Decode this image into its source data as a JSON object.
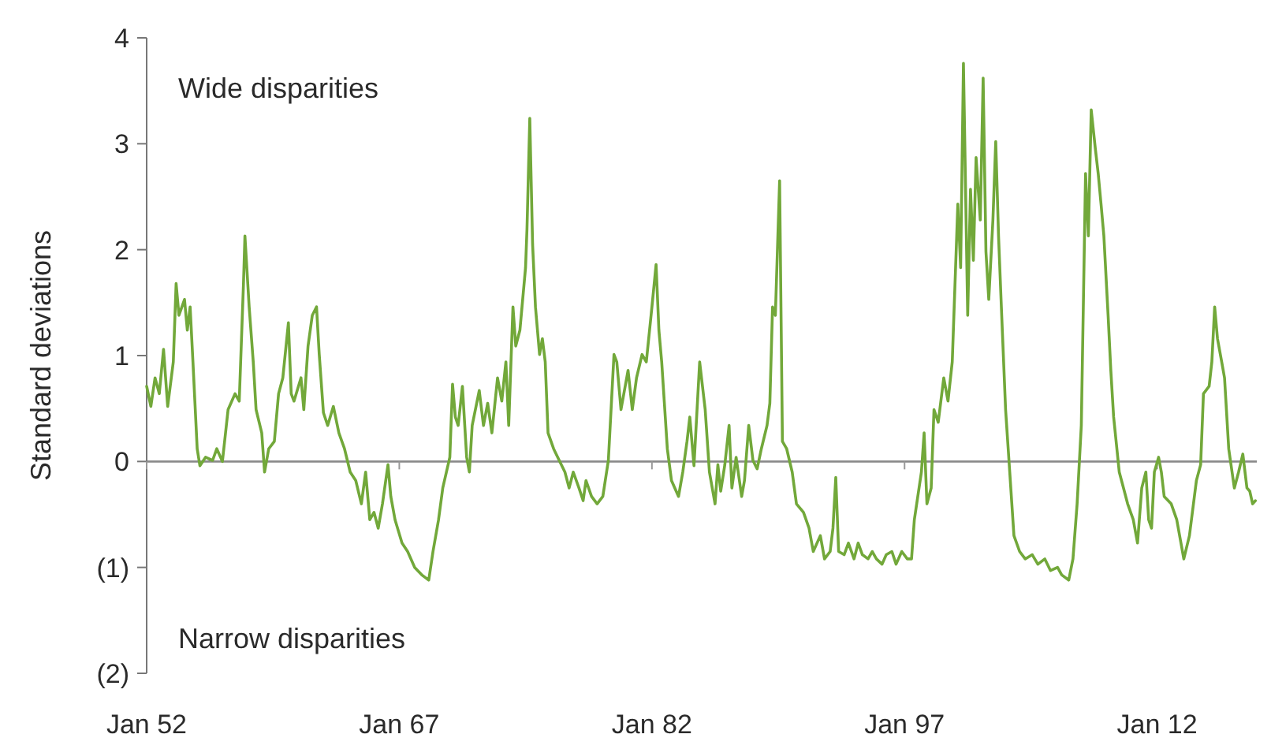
{
  "chart_data": {
    "type": "line",
    "ylabel": "Standard deviations",
    "annotations": [
      "Wide disparities",
      "Narrow disparities"
    ],
    "xlim": [
      "1952-01",
      "2017-12"
    ],
    "xticks": [
      {
        "value": "1952-01",
        "label": "Jan 52"
      },
      {
        "value": "1967-01",
        "label": "Jan 67"
      },
      {
        "value": "1982-01",
        "label": "Jan 82"
      },
      {
        "value": "1997-01",
        "label": "Jan 97"
      },
      {
        "value": "2012-01",
        "label": "Jan 12"
      }
    ],
    "ylim": [
      -2,
      4
    ],
    "yticks": [
      {
        "value": -2,
        "label": "(2)"
      },
      {
        "value": -1,
        "label": "(1)"
      },
      0,
      1,
      2,
      3,
      4
    ],
    "ref_lines": [
      {
        "axis": "y",
        "value": 0,
        "color": "#8c8c8c"
      }
    ],
    "grid": false,
    "marker": "none",
    "line_style": "solid",
    "series": [
      {
        "color": "#72a83a",
        "x": [
          "1952-01",
          "1952-04",
          "1952-07",
          "1952-10",
          "1953-01",
          "1953-04",
          "1953-08",
          "1953-10",
          "1953-12",
          "1954-04",
          "1954-06",
          "1954-08",
          "1954-10",
          "1955-01",
          "1955-03",
          "1955-07",
          "1955-12",
          "1956-03",
          "1956-07",
          "1956-11",
          "1957-04",
          "1957-07",
          "1957-10",
          "1957-11",
          "1958-02",
          "1958-05",
          "1958-07",
          "1958-11",
          "1959-01",
          "1959-04",
          "1959-08",
          "1959-11",
          "1960-02",
          "1960-06",
          "1960-08",
          "1960-10",
          "1961-03",
          "1961-05",
          "1961-08",
          "1961-11",
          "1962-02",
          "1962-04",
          "1962-07",
          "1962-10",
          "1963-02",
          "1963-06",
          "1963-10",
          "1964-02",
          "1964-06",
          "1964-10",
          "1965-01",
          "1965-04",
          "1965-07",
          "1965-10",
          "1966-01",
          "1966-05",
          "1966-07",
          "1966-10",
          "1967-03",
          "1967-07",
          "1967-12",
          "1968-05",
          "1968-10",
          "1969-01",
          "1969-05",
          "1969-08",
          "1970-01",
          "1970-03",
          "1970-05",
          "1970-07",
          "1970-10",
          "1971-01",
          "1971-03",
          "1971-05",
          "1971-10",
          "1972-01",
          "1972-04",
          "1972-07",
          "1972-11",
          "1973-02",
          "1973-05",
          "1973-07",
          "1973-10",
          "1973-12",
          "1974-03",
          "1974-07",
          "1974-08",
          "1974-10",
          "1974-12",
          "1975-02",
          "1975-05",
          "1975-07",
          "1975-09",
          "1975-11",
          "1976-03",
          "1976-07",
          "1976-11",
          "1977-02",
          "1977-05",
          "1977-09",
          "1977-12",
          "1978-02",
          "1978-06",
          "1978-10",
          "1979-02",
          "1979-06",
          "1979-10",
          "1979-12",
          "1980-03",
          "1980-08",
          "1980-11",
          "1981-02",
          "1981-06",
          "1981-09",
          "1982-01",
          "1982-04",
          "1982-06",
          "1982-08",
          "1982-12",
          "1983-03",
          "1983-08",
          "1983-11",
          "1984-02",
          "1984-04",
          "1984-07",
          "1984-11",
          "1985-03",
          "1985-06",
          "1985-10",
          "1985-12",
          "1986-02",
          "1986-05",
          "1986-08",
          "1986-10",
          "1987-01",
          "1987-05",
          "1987-07",
          "1987-10",
          "1988-01",
          "1988-04",
          "1988-07",
          "1988-11",
          "1989-01",
          "1989-03",
          "1989-05",
          "1989-08",
          "1989-10",
          "1990-01",
          "1990-05",
          "1990-08",
          "1991-01",
          "1991-05",
          "1991-08",
          "1992-01",
          "1992-04",
          "1992-08",
          "1992-10",
          "1992-12",
          "1993-02",
          "1993-06",
          "1993-09",
          "1994-01",
          "1994-04",
          "1994-07",
          "1994-11",
          "1995-02",
          "1995-05",
          "1995-09",
          "1995-12",
          "1996-04",
          "1996-07",
          "1996-11",
          "1997-03",
          "1997-06",
          "1997-08",
          "1998-01",
          "1998-03",
          "1998-05",
          "1998-08",
          "1998-10",
          "1999-01",
          "1999-05",
          "1999-08",
          "1999-11",
          "2000-03",
          "2000-05",
          "2000-07",
          "2000-10",
          "2000-12",
          "2001-02",
          "2001-04",
          "2001-07",
          "2001-09",
          "2001-11",
          "2002-01",
          "2002-04",
          "2002-06",
          "2002-08",
          "2002-10",
          "2003-01",
          "2003-04",
          "2003-07",
          "2003-11",
          "2004-03",
          "2004-08",
          "2004-12",
          "2005-05",
          "2005-09",
          "2006-02",
          "2006-05",
          "2006-10",
          "2007-01",
          "2007-04",
          "2007-07",
          "2007-10",
          "2007-12",
          "2008-02",
          "2008-05",
          "2008-07",
          "2008-09",
          "2008-11",
          "2009-02",
          "2009-04",
          "2009-06",
          "2009-10",
          "2010-01",
          "2010-04",
          "2010-08",
          "2010-11",
          "2011-02",
          "2011-05",
          "2011-07",
          "2011-09",
          "2011-11",
          "2012-02",
          "2012-04",
          "2012-06",
          "2012-11",
          "2013-03",
          "2013-08",
          "2013-12",
          "2014-05",
          "2014-08",
          "2014-10",
          "2015-02",
          "2015-04",
          "2015-06",
          "2015-08",
          "2015-11",
          "2016-01",
          "2016-04",
          "2016-08",
          "2016-11",
          "2017-02",
          "2017-05",
          "2017-07",
          "2017-09",
          "2017-11"
        ],
        "values": [
          0.71,
          0.52,
          0.79,
          0.64,
          1.06,
          0.52,
          0.94,
          1.68,
          1.38,
          1.53,
          1.24,
          1.46,
          0.94,
          0.12,
          -0.04,
          0.04,
          0.01,
          0.12,
          0,
          0.49,
          0.64,
          0.57,
          1.68,
          2.13,
          1.46,
          0.94,
          0.49,
          0.27,
          -0.1,
          0.12,
          0.19,
          0.64,
          0.79,
          1.31,
          0.64,
          0.57,
          0.79,
          0.49,
          1.09,
          1.38,
          1.46,
          1.01,
          0.46,
          0.34,
          0.52,
          0.27,
          0.12,
          -0.1,
          -0.18,
          -0.4,
          -0.1,
          -0.55,
          -0.48,
          -0.63,
          -0.4,
          -0.03,
          -0.33,
          -0.55,
          -0.77,
          -0.85,
          -1.0,
          -1.07,
          -1.12,
          -0.85,
          -0.55,
          -0.25,
          0.04,
          0.73,
          0.42,
          0.34,
          0.71,
          0.04,
          -0.1,
          0.34,
          0.67,
          0.34,
          0.55,
          0.27,
          0.79,
          0.57,
          0.94,
          0.34,
          1.46,
          1.09,
          1.24,
          1.83,
          2.19,
          3.24,
          2.05,
          1.46,
          1.01,
          1.16,
          0.94,
          0.27,
          0.12,
          0.01,
          -0.1,
          -0.25,
          -0.1,
          -0.25,
          -0.37,
          -0.18,
          -0.33,
          -0.4,
          -0.33,
          0.01,
          1.01,
          0.94,
          0.49,
          0.86,
          0.49,
          0.79,
          1.01,
          0.94,
          1.46,
          1.86,
          1.24,
          0.94,
          0.12,
          -0.18,
          -0.33,
          -0.1,
          0.19,
          0.42,
          -0.04,
          0.94,
          0.49,
          -0.1,
          -0.4,
          -0.03,
          -0.28,
          -0.03,
          0.34,
          -0.25,
          0.04,
          -0.33,
          -0.18,
          0.34,
          0.01,
          -0.07,
          0.12,
          0.34,
          0.55,
          1.46,
          1.38,
          2.65,
          0.19,
          0.12,
          -0.1,
          -0.4,
          -0.48,
          -0.63,
          -0.85,
          -0.7,
          -0.92,
          -0.85,
          -0.63,
          -0.15,
          -0.85,
          -0.88,
          -0.77,
          -0.92,
          -0.77,
          -0.88,
          -0.92,
          -0.85,
          -0.92,
          -0.97,
          -0.88,
          -0.85,
          -0.97,
          -0.85,
          -0.92,
          -0.92,
          -0.55,
          -0.1,
          0.27,
          -0.4,
          -0.25,
          0.49,
          0.37,
          0.79,
          0.57,
          0.94,
          2.43,
          1.83,
          3.76,
          1.38,
          2.57,
          1.9,
          2.87,
          2.28,
          3.62,
          1.98,
          1.53,
          2.28,
          3.02,
          2.13,
          1.46,
          0.49,
          -0.1,
          -0.7,
          -0.85,
          -0.92,
          -0.88,
          -0.97,
          -0.92,
          -1.03,
          -1.0,
          -1.07,
          -1.12,
          -0.92,
          -0.4,
          0.34,
          2.72,
          2.13,
          3.32,
          2.95,
          2.72,
          2.43,
          2.13,
          1.38,
          0.86,
          0.42,
          -0.1,
          -0.25,
          -0.4,
          -0.55,
          -0.77,
          -0.25,
          -0.1,
          -0.55,
          -0.63,
          -0.1,
          0.04,
          -0.1,
          -0.33,
          -0.4,
          -0.55,
          -0.92,
          -0.7,
          -0.18,
          -0.03,
          0.64,
          0.71,
          0.94,
          1.46,
          1.16,
          0.94,
          0.79,
          0.12,
          -0.25,
          -0.1,
          0.07,
          -0.25,
          -0.28,
          -0.4,
          -0.37
        ]
      }
    ]
  }
}
